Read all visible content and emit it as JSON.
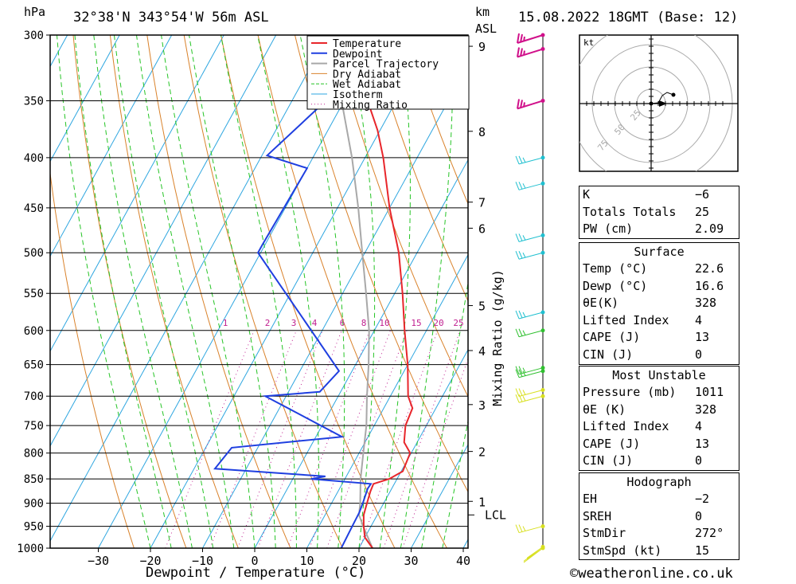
{
  "header": {
    "unit_hpa": "hPa",
    "location": "32°38'N 343°54'W 56m ASL",
    "unit_km": "km",
    "unit_asl": "ASL",
    "datetime": "15.08.2022 18GMT (Base: 12)"
  },
  "chart_data": {
    "type": "line",
    "title": "32°38'N 343°54'W 56m ASL",
    "xlabel": "Dewpoint / Temperature (°C)",
    "ylabel": "hPa",
    "secondary_ylabel": "Mixing Ratio (g/kg)",
    "xlim": [
      -40,
      40
    ],
    "ylim": [
      1000,
      300
    ],
    "y_scale": "log",
    "skew": true,
    "x_ticks": [
      "−30",
      "−20",
      "−10",
      "0",
      "10",
      "20",
      "30",
      "40"
    ],
    "x_tick_values": [
      -30,
      -20,
      -10,
      0,
      10,
      20,
      30,
      40
    ],
    "pressure_levels": [
      "300",
      "350",
      "400",
      "450",
      "500",
      "550",
      "600",
      "650",
      "700",
      "750",
      "800",
      "850",
      "900",
      "950",
      "1000"
    ],
    "pressure_level_values": [
      300,
      350,
      400,
      450,
      500,
      550,
      600,
      650,
      700,
      750,
      800,
      850,
      900,
      950,
      1000
    ],
    "km_labels": [
      "9",
      "8",
      "7",
      "6",
      "5",
      "4",
      "3",
      "2",
      "1"
    ],
    "km_label_pressures": [
      308,
      376,
      444,
      472,
      566,
      629,
      714,
      797,
      896
    ],
    "lcl_label": "LCL",
    "lcl_pressure": 925,
    "mixing_ratio_labels": [
      "1",
      "2",
      "3",
      "4",
      "6",
      "8",
      "10",
      "15",
      "20",
      "25"
    ],
    "legend": [
      "Temperature",
      "Dewpoint",
      "Parcel Trajectory",
      "Dry Adiabat",
      "Wet Adiabat",
      "Isotherm",
      "Mixing Ratio"
    ],
    "legend_position": "top-right",
    "colors": {
      "temperature": "#e8262b",
      "dewpoint": "#1f3fe0",
      "parcel": "#a8a8a8",
      "dry_adiabat": "#d9822b",
      "wet_adiabat": "#25c425",
      "isotherm": "#2ea6e0",
      "mixing_ratio": "#c02090",
      "wind_high": "#d0108a",
      "wind_mid": "#20c0d0",
      "wind_low_green": "#30c030",
      "wind_low_yellow": "#d8e020"
    },
    "series": [
      {
        "name": "Temperature",
        "points": [
          [
            1000,
            22.6
          ],
          [
            975,
            20
          ],
          [
            950,
            18.6
          ],
          [
            925,
            17.4
          ],
          [
            900,
            16.8
          ],
          [
            875,
            16.2
          ],
          [
            860,
            16.0
          ],
          [
            850,
            18.5
          ],
          [
            835,
            20.3
          ],
          [
            800,
            19.8
          ],
          [
            780,
            17.5
          ],
          [
            750,
            16.0
          ],
          [
            720,
            15.5
          ],
          [
            700,
            13.4
          ],
          [
            650,
            10.0
          ],
          [
            600,
            5.8
          ],
          [
            550,
            1.5
          ],
          [
            500,
            -3.5
          ],
          [
            450,
            -10.0
          ],
          [
            400,
            -16.5
          ],
          [
            375,
            -20.5
          ],
          [
            350,
            -25.5
          ],
          [
            300,
            -36.0
          ]
        ]
      },
      {
        "name": "Dewpoint",
        "points": [
          [
            1000,
            16.6
          ],
          [
            950,
            16.4
          ],
          [
            920,
            16.3
          ],
          [
            900,
            16.0
          ],
          [
            870,
            15.4
          ],
          [
            860,
            15.5
          ],
          [
            850,
            3.5
          ],
          [
            845,
            6.0
          ],
          [
            830,
            -16.0
          ],
          [
            790,
            -15.0
          ],
          [
            770,
            5.0
          ],
          [
            700,
            -14.0
          ],
          [
            693,
            -4.0
          ],
          [
            660,
            -2.5
          ],
          [
            500,
            -30.5
          ],
          [
            490,
            -30.5
          ],
          [
            410,
            -30.0
          ],
          [
            398,
            -39.0
          ],
          [
            330,
            -31.0
          ],
          [
            315,
            -22.0
          ],
          [
            300,
            -30.0
          ]
        ]
      },
      {
        "name": "Parcel Trajectory",
        "points": [
          [
            1000,
            22.6
          ],
          [
            950,
            18.5
          ],
          [
            925,
            16.5
          ],
          [
            900,
            15.5
          ],
          [
            850,
            13.0
          ],
          [
            800,
            10.8
          ],
          [
            750,
            8.5
          ],
          [
            700,
            5.5
          ],
          [
            650,
            2.5
          ],
          [
            600,
            -1.0
          ],
          [
            550,
            -5.5
          ],
          [
            500,
            -10.5
          ],
          [
            450,
            -16.0
          ],
          [
            400,
            -22.5
          ],
          [
            350,
            -30.5
          ],
          [
            300,
            -41.0
          ]
        ]
      }
    ],
    "wind_barbs_pressures": [
      1000,
      997,
      950,
      700,
      690,
      660,
      655,
      600,
      575,
      500,
      480,
      425,
      400,
      350,
      310,
      300
    ]
  },
  "hodograph": {
    "unit": "kt",
    "ring_labels": [
      "25",
      "50",
      "75"
    ]
  },
  "indices": [
    {
      "label": "K",
      "value": "−6"
    },
    {
      "label": "Totals Totals",
      "value": "25"
    },
    {
      "label": "PW (cm)",
      "value": "2.09"
    }
  ],
  "surface": {
    "title": "Surface",
    "rows": [
      {
        "label": "Temp (°C)",
        "value": "22.6"
      },
      {
        "label": "Dewp (°C)",
        "value": "16.6"
      },
      {
        "label": "θE(K)",
        "value": "328"
      },
      {
        "label": "Lifted Index",
        "value": "4"
      },
      {
        "label": "CAPE (J)",
        "value": "13"
      },
      {
        "label": "CIN (J)",
        "value": "0"
      }
    ]
  },
  "most_unstable": {
    "title": "Most Unstable",
    "rows": [
      {
        "label": "Pressure (mb)",
        "value": "1011"
      },
      {
        "label": "θE (K)",
        "value": "328"
      },
      {
        "label": "Lifted Index",
        "value": "4"
      },
      {
        "label": "CAPE (J)",
        "value": "13"
      },
      {
        "label": "CIN (J)",
        "value": "0"
      }
    ]
  },
  "hodograph_table": {
    "title": "Hodograph",
    "rows": [
      {
        "label": "EH",
        "value": "−2"
      },
      {
        "label": "SREH",
        "value": "0"
      },
      {
        "label": "StmDir",
        "value": "272°"
      },
      {
        "label": "StmSpd (kt)",
        "value": "15"
      }
    ]
  },
  "footer": {
    "copyright": "©weatheronline.co.uk"
  }
}
